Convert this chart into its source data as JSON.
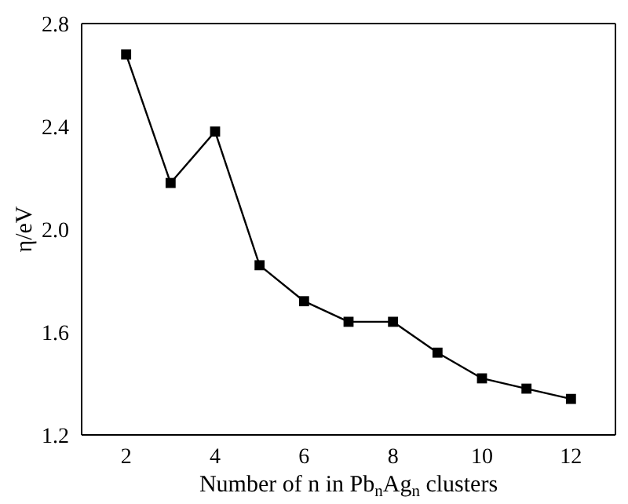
{
  "chart_data": {
    "type": "line",
    "xlabel": "Number of n in Pb$_{n}$Ag$_{n}$ clusters",
    "ylabel": "η/eV",
    "x": [
      2,
      3,
      4,
      5,
      6,
      7,
      8,
      9,
      10,
      11,
      12
    ],
    "series": [
      {
        "color": "#000000",
        "values": [
          2.68,
          2.18,
          2.38,
          1.86,
          1.72,
          1.64,
          1.64,
          1.52,
          1.42,
          1.38,
          1.34
        ]
      }
    ],
    "xlim": [
      1,
      13
    ],
    "xticks": [
      2,
      4,
      6,
      8,
      10,
      12
    ],
    "ylim": [
      1.2,
      2.8
    ],
    "yticks": [
      1.2,
      1.6,
      {
        "value": 2,
        "label": "2.0"
      },
      2.4,
      2.8
    ],
    "marker": "square",
    "line_style": "solid",
    "grid": false,
    "legend": false
  }
}
